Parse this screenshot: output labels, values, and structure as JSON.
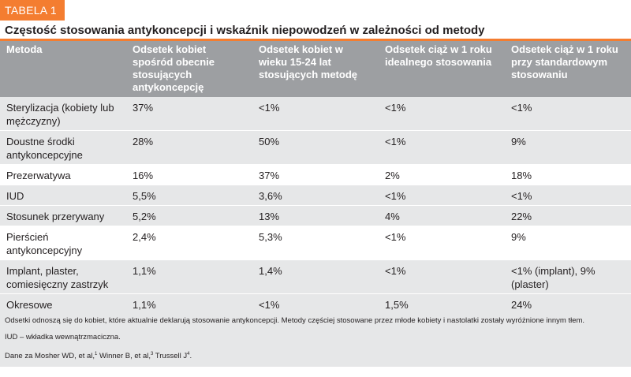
{
  "tag": "TABELA 1",
  "title": "Częstość stosowania antykoncepcji i wskaźnik niepowodzeń w zależności od metody",
  "colors": {
    "accent": "#f47d30",
    "header_bg": "#9d9fa2",
    "shade_bg": "#e6e7e8"
  },
  "table": {
    "headers": [
      "Metoda",
      "Odsetek kobiet spośród obecnie stosujących antykoncepcję",
      "Odsetek kobiet w wieku 15-24 lat stosujących metodę",
      "Odsetek ciąż w 1 roku idealnego stosowania",
      "Odsetek ciąż w 1 roku przy standardowym stosowaniu"
    ],
    "rows": [
      {
        "shade": true,
        "cells": [
          "Sterylizacja (kobiety lub mężczyzny)",
          "37%",
          "<1%",
          "<1%",
          "<1%"
        ]
      },
      {
        "shade": true,
        "cells": [
          "Doustne środki antykoncepcyjne",
          "28%",
          "50%",
          "<1%",
          "9%"
        ]
      },
      {
        "shade": false,
        "cells": [
          "Prezerwatywa",
          "16%",
          "37%",
          "2%",
          "18%"
        ]
      },
      {
        "shade": true,
        "cells": [
          "IUD",
          "5,5%",
          "3,6%",
          "<1%",
          "<1%"
        ]
      },
      {
        "shade": true,
        "cells": [
          "Stosunek przerywany",
          "5,2%",
          "13%",
          "4%",
          "22%"
        ]
      },
      {
        "shade": false,
        "cells": [
          "Pierścień antykoncepcyjny",
          "2,4%",
          "5,3%",
          "<1%",
          "9%"
        ]
      },
      {
        "shade": true,
        "cells": [
          "Implant, plaster, comiesięczny zastrzyk",
          "1,1%",
          "1,4%",
          "<1%",
          "<1% (implant), 9% (plaster)"
        ]
      },
      {
        "shade": true,
        "cells": [
          "Okresowe powstrzymywanie się od współżycia",
          "1,1%",
          "<1%",
          "1,5%",
          "24%"
        ]
      }
    ]
  },
  "footer": {
    "note": "Odsetki odnoszą się do kobiet, które aktualnie deklarują stosowanie antykoncepcji. Metody częściej stosowane przez młode kobiety i nastolatki zostały wyróżnione innym tłem.",
    "iud": "IUD –  wkładka wewnątrzmaciczna.",
    "source_prefix": "Dane za Mosher WD, et al,",
    "source_sup1": "1",
    "source_mid1": " Winner B, et al,",
    "source_sup2": "3",
    "source_mid2": " Trussell J",
    "source_sup3": "4",
    "source_end": "."
  }
}
